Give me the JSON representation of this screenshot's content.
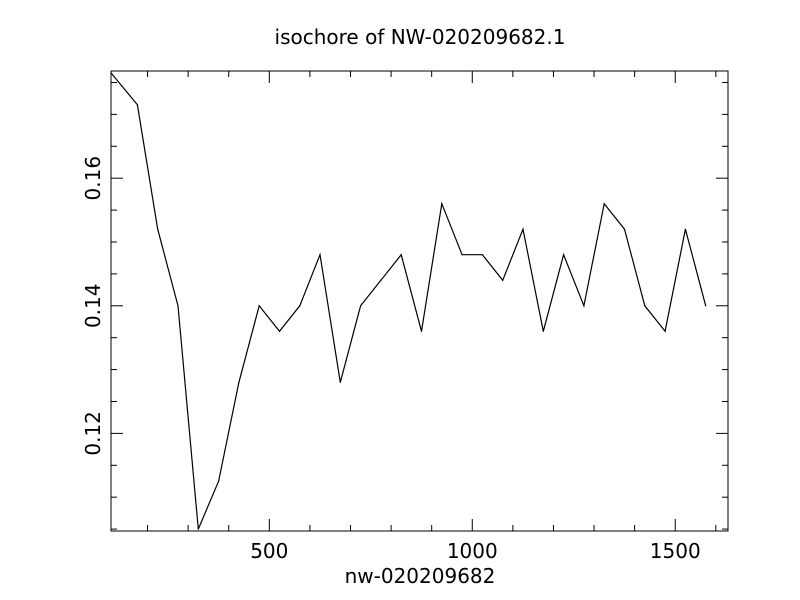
{
  "chart_data": {
    "type": "line",
    "title": "isochore of NW-020209682.1",
    "xlabel": "nw-020209682",
    "ylabel": "",
    "xlim": [
      110,
      1630
    ],
    "ylim": [
      0.1047,
      0.1768
    ],
    "x_ticks": [
      500,
      1000,
      1500
    ],
    "x_tick_labels": [
      "500",
      "1000",
      "1500"
    ],
    "y_ticks": [
      0.12,
      0.14,
      0.16
    ],
    "y_tick_labels": [
      "0.12",
      "0.14",
      "0.16"
    ],
    "grid": false,
    "legend": "none",
    "line_color": "#000000",
    "x": [
      110,
      175,
      225,
      275,
      325,
      375,
      425,
      475,
      525,
      575,
      625,
      675,
      725,
      775,
      825,
      875,
      925,
      975,
      1025,
      1075,
      1125,
      1175,
      1225,
      1275,
      1325,
      1375,
      1425,
      1475,
      1525,
      1575
    ],
    "values": [
      0.1765,
      0.1715,
      0.152,
      0.14,
      0.105,
      0.1125,
      0.128,
      0.14,
      0.136,
      0.14,
      0.148,
      0.128,
      0.14,
      0.144,
      0.148,
      0.136,
      0.156,
      0.148,
      0.148,
      0.144,
      0.152,
      0.136,
      0.148,
      0.14,
      0.156,
      0.152,
      0.14,
      0.136,
      0.152,
      0.14
    ]
  }
}
